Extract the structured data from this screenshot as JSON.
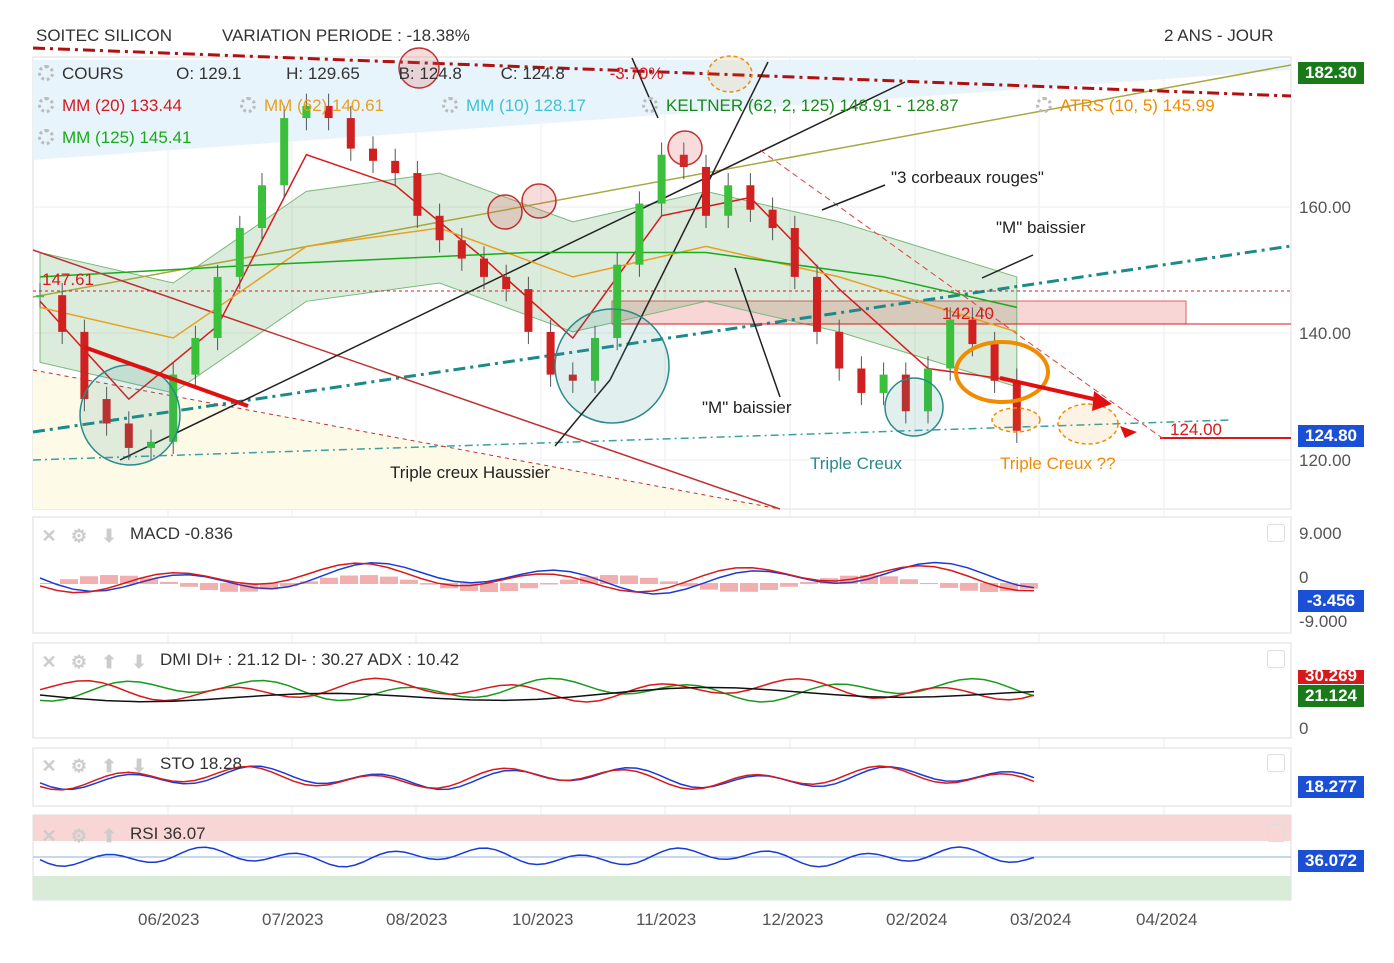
{
  "header": {
    "symbol": "SOITEC SILICON",
    "variation": "VARIATION PERIODE : -18.38%",
    "period": "2 ANS - JOUR"
  },
  "legend": {
    "cours": {
      "label": "COURS",
      "o": "O: 129.1",
      "h": "H: 129.65",
      "b": "B: 124.8",
      "c": "C: 124.8",
      "pct": "-3.70%"
    },
    "mm20": "MM (20)  133.44",
    "mm62": "MM (62)  140.61",
    "mm10": "MM (10)  128.17",
    "keltner": "KELTNER (62, 2, 125)  148.91 - 128.87",
    "atrs": "ATRS (10, 5)  145.99",
    "mm125": "MM (125)  145.41"
  },
  "colors": {
    "mm20": "#d7191c",
    "mm62": "#e8a020",
    "mm10": "#41c1d4",
    "keltner": "#1a9a1a",
    "atrs": "#f08c00",
    "mm125": "#1aaa1a",
    "blueTag": "#1a4fd6",
    "greenTag": "#1a7a1a",
    "redTag": "#d7191c"
  },
  "price_tags": {
    "top": "182.30",
    "last": "124.80"
  },
  "annotations": {
    "corbeaux": "\"3 corbeaux rouges\"",
    "m1": "\"M\" baissier",
    "m2": "\"M\" baissier",
    "tch": "Triple creux Haussier",
    "tc": "Triple Creux",
    "tcq": "Triple Creux ??",
    "lvl147": "147.61",
    "lvl142": "142.40",
    "lvl124": "124.00"
  },
  "indicators": {
    "macd": {
      "name": "MACD",
      "value": "-0.836",
      "axis_top": "9.000",
      "axis_zero": "0",
      "axis_bottom": "-9.000",
      "tag": "-3.456"
    },
    "dmi": {
      "name": "DMI",
      "value": "DI+ : 21.12  DI- : 30.27  ADX : 10.42",
      "axis_zero": "0",
      "tag_top": "30.269",
      "tag": "21.124"
    },
    "sto": {
      "name": "STO",
      "value": "18.28",
      "tag": "18.277"
    },
    "rsi": {
      "name": "RSI",
      "value": "36.07",
      "tag": "36.072"
    }
  },
  "chart_data": {
    "type": "line",
    "title": "SOITEC SILICON",
    "ylim": [
      112,
      186
    ],
    "y_ticks": [
      "160.00",
      "140.00",
      "120.00"
    ],
    "x_ticks": [
      "06/2023",
      "07/2023",
      "08/2023",
      "10/2023",
      "11/2023",
      "12/2023",
      "02/2024",
      "03/2024",
      "04/2024"
    ],
    "series": [
      {
        "name": "COURS",
        "points": [
          [
            0,
            147
          ],
          [
            1,
            141
          ],
          [
            2,
            130
          ],
          [
            3,
            126
          ],
          [
            4,
            122
          ],
          [
            5,
            123
          ],
          [
            6,
            134
          ],
          [
            7,
            140
          ],
          [
            8,
            150
          ],
          [
            9,
            158
          ],
          [
            10,
            165
          ],
          [
            11,
            176
          ],
          [
            12,
            178
          ],
          [
            13,
            176
          ],
          [
            14,
            171
          ],
          [
            15,
            169
          ],
          [
            16,
            167
          ],
          [
            17,
            160
          ],
          [
            18,
            156
          ],
          [
            19,
            153
          ],
          [
            20,
            150
          ],
          [
            21,
            148
          ],
          [
            22,
            141
          ],
          [
            23,
            134
          ],
          [
            24,
            133
          ],
          [
            25,
            140
          ],
          [
            26,
            152
          ],
          [
            27,
            162
          ],
          [
            28,
            170
          ],
          [
            29,
            168
          ],
          [
            30,
            160
          ],
          [
            31,
            165
          ],
          [
            32,
            161
          ],
          [
            33,
            158
          ],
          [
            34,
            150
          ],
          [
            35,
            141
          ],
          [
            36,
            135
          ],
          [
            37,
            131
          ],
          [
            38,
            134
          ],
          [
            39,
            128
          ],
          [
            40,
            135
          ],
          [
            41,
            143
          ],
          [
            42,
            139
          ],
          [
            43,
            133
          ],
          [
            44,
            124.8
          ]
        ]
      },
      {
        "name": "MM (20)",
        "points": [
          [
            0,
            146
          ],
          [
            4,
            130
          ],
          [
            8,
            142
          ],
          [
            12,
            170
          ],
          [
            16,
            165
          ],
          [
            20,
            153
          ],
          [
            24,
            140
          ],
          [
            28,
            160
          ],
          [
            32,
            163
          ],
          [
            36,
            148
          ],
          [
            40,
            135
          ],
          [
            44,
            133
          ]
        ]
      },
      {
        "name": "MM (62)",
        "points": [
          [
            0,
            145
          ],
          [
            6,
            140
          ],
          [
            12,
            155
          ],
          [
            18,
            158
          ],
          [
            24,
            150
          ],
          [
            30,
            155
          ],
          [
            36,
            150
          ],
          [
            44,
            141
          ]
        ]
      },
      {
        "name": "MM (125)",
        "points": [
          [
            0,
            150
          ],
          [
            10,
            152
          ],
          [
            22,
            154
          ],
          [
            30,
            154
          ],
          [
            38,
            150
          ],
          [
            44,
            145
          ]
        ]
      }
    ]
  }
}
